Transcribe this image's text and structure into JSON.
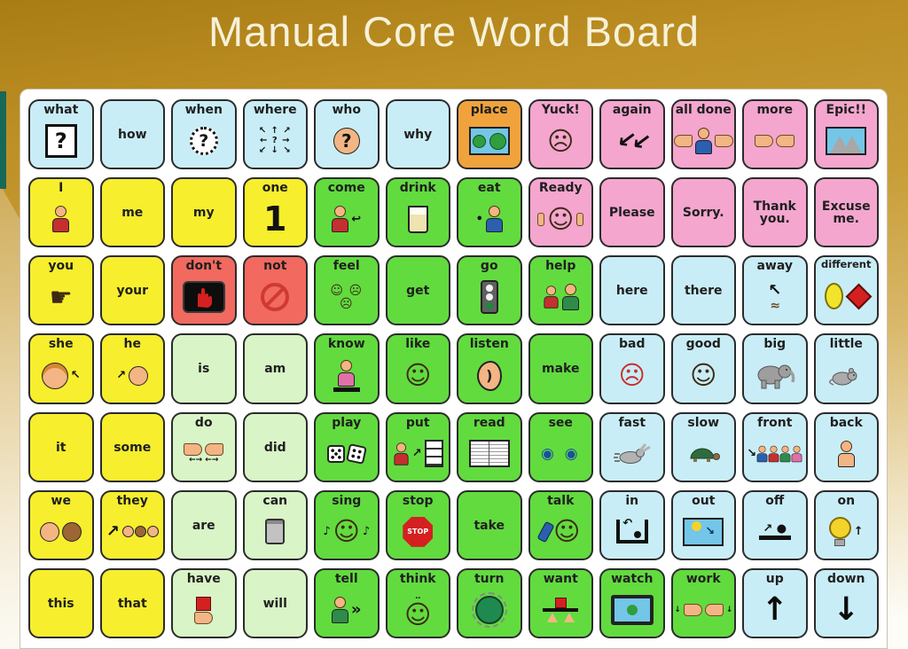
{
  "title": "Manual Core Word Board",
  "colors": {
    "slide_background_gold": "#c0912a",
    "title_text": "#f6f1da",
    "teal_accent": "#18685a",
    "board_background": "#ffffff",
    "cell_border": "#2b2b2b",
    "word_text": "#1f1f1f",
    "categories": {
      "blue": "#c9edf6",
      "yellow": "#f7ee2e",
      "pink": "#f4a6ce",
      "green": "#62db3f",
      "pale": "#d9f4c7",
      "red": "#f2695f",
      "orange": "#f0a33c"
    }
  },
  "board": {
    "rows": 7,
    "cols": 12,
    "cells": [
      {
        "word": "what",
        "color": "blue",
        "icon": "question-box-icon"
      },
      {
        "word": "how",
        "color": "blue"
      },
      {
        "word": "when",
        "color": "blue",
        "icon": "clock-question-icon"
      },
      {
        "word": "where",
        "color": "blue",
        "icon": "direction-arrows-icon"
      },
      {
        "word": "who",
        "color": "blue",
        "icon": "face-question-icon"
      },
      {
        "word": "why",
        "color": "blue"
      },
      {
        "word": "place",
        "color": "orange",
        "icon": "park-scene-icon"
      },
      {
        "word": "Yuck!",
        "color": "pink",
        "icon": "disgusted-face-icon"
      },
      {
        "word": "again",
        "color": "pink",
        "icon": "repeat-arrows-icon"
      },
      {
        "word": "all done",
        "color": "pink",
        "icon": "all-done-hands-icon"
      },
      {
        "word": "more",
        "color": "pink",
        "icon": "more-hands-icon"
      },
      {
        "word": "Epic!!",
        "color": "pink",
        "icon": "mountains-icon"
      },
      {
        "word": "I",
        "color": "yellow",
        "icon": "point-to-self-icon"
      },
      {
        "word": "me",
        "color": "yellow"
      },
      {
        "word": "my",
        "color": "yellow"
      },
      {
        "word": "one",
        "color": "yellow",
        "icon": "numeral-one-icon"
      },
      {
        "word": "come",
        "color": "green",
        "icon": "beckoning-person-icon"
      },
      {
        "word": "drink",
        "color": "green",
        "icon": "drink-glass-icon"
      },
      {
        "word": "eat",
        "color": "green",
        "icon": "eating-person-icon"
      },
      {
        "word": "Ready",
        "color": "pink",
        "icon": "thumbs-up-person-icon"
      },
      {
        "word": "Please",
        "color": "pink"
      },
      {
        "word": "Sorry.",
        "color": "pink"
      },
      {
        "word": "Thank you.",
        "color": "pink"
      },
      {
        "word": "Excuse me.",
        "color": "pink"
      },
      {
        "word": "you",
        "color": "yellow",
        "icon": "pointing-at-you-icon"
      },
      {
        "word": "your",
        "color": "yellow"
      },
      {
        "word": "don't",
        "color": "red",
        "icon": "stop-hand-icon"
      },
      {
        "word": "not",
        "color": "red",
        "icon": "no-symbol-icon"
      },
      {
        "word": "feel",
        "color": "green",
        "icon": "feelings-faces-icon"
      },
      {
        "word": "get",
        "color": "green"
      },
      {
        "word": "go",
        "color": "green",
        "icon": "traffic-light-icon"
      },
      {
        "word": "help",
        "color": "green",
        "icon": "helping-people-icon"
      },
      {
        "word": "here",
        "color": "blue"
      },
      {
        "word": "there",
        "color": "blue"
      },
      {
        "word": "away",
        "color": "blue",
        "icon": "fly-away-icon"
      },
      {
        "word": "different",
        "color": "blue",
        "icon": "different-shapes-icon"
      },
      {
        "word": "she",
        "color": "yellow",
        "icon": "female-face-arrow-icon"
      },
      {
        "word": "he",
        "color": "yellow",
        "icon": "male-face-arrow-icon"
      },
      {
        "word": "is",
        "color": "pale"
      },
      {
        "word": "am",
        "color": "pale"
      },
      {
        "word": "know",
        "color": "green",
        "icon": "raised-hand-person-icon"
      },
      {
        "word": "like",
        "color": "green",
        "icon": "smiling-face-icon"
      },
      {
        "word": "listen",
        "color": "green",
        "icon": "listening-ear-icon"
      },
      {
        "word": "make",
        "color": "green"
      },
      {
        "word": "bad",
        "color": "blue",
        "icon": "angry-face-icon"
      },
      {
        "word": "good",
        "color": "blue",
        "icon": "happy-face-icon"
      },
      {
        "word": "big",
        "color": "blue",
        "icon": "elephant-icon"
      },
      {
        "word": "little",
        "color": "blue",
        "icon": "mouse-icon"
      },
      {
        "word": "it",
        "color": "yellow"
      },
      {
        "word": "some",
        "color": "yellow"
      },
      {
        "word": "do",
        "color": "pale",
        "icon": "doing-hands-icon"
      },
      {
        "word": "did",
        "color": "pale"
      },
      {
        "word": "play",
        "color": "green",
        "icon": "dice-icon"
      },
      {
        "word": "put",
        "color": "green",
        "icon": "put-on-shelf-icon"
      },
      {
        "word": "read",
        "color": "green",
        "icon": "open-book-icon"
      },
      {
        "word": "see",
        "color": "green",
        "icon": "seeing-eyes-icon"
      },
      {
        "word": "fast",
        "color": "blue",
        "icon": "rabbit-icon"
      },
      {
        "word": "slow",
        "color": "blue",
        "icon": "turtle-icon"
      },
      {
        "word": "front",
        "color": "blue",
        "icon": "people-in-line-icon"
      },
      {
        "word": "back",
        "color": "blue",
        "icon": "person-back-icon"
      },
      {
        "word": "we",
        "color": "yellow",
        "icon": "two-faces-icon"
      },
      {
        "word": "they",
        "color": "yellow",
        "icon": "group-arrow-icon"
      },
      {
        "word": "are",
        "color": "pale"
      },
      {
        "word": "can",
        "color": "pale",
        "icon": "tin-can-icon"
      },
      {
        "word": "sing",
        "color": "green",
        "icon": "singing-face-icon"
      },
      {
        "word": "stop",
        "color": "green",
        "icon": "stop-sign-icon"
      },
      {
        "word": "take",
        "color": "green"
      },
      {
        "word": "talk",
        "color": "green",
        "icon": "talking-phone-icon"
      },
      {
        "word": "in",
        "color": "blue",
        "icon": "into-container-icon"
      },
      {
        "word": "out",
        "color": "blue",
        "icon": "out-window-icon"
      },
      {
        "word": "off",
        "color": "blue",
        "icon": "switch-off-icon"
      },
      {
        "word": "on",
        "color": "blue",
        "icon": "light-bulb-icon"
      },
      {
        "word": "this",
        "color": "yellow"
      },
      {
        "word": "that",
        "color": "yellow"
      },
      {
        "word": "have",
        "color": "pale",
        "icon": "hand-with-block-icon"
      },
      {
        "word": "will",
        "color": "pale"
      },
      {
        "word": "tell",
        "color": "green",
        "icon": "telling-person-icon"
      },
      {
        "word": "think",
        "color": "green",
        "icon": "thinking-face-icon"
      },
      {
        "word": "turn",
        "color": "green",
        "icon": "turn-knob-icon"
      },
      {
        "word": "want",
        "color": "green",
        "icon": "wanting-hands-icon"
      },
      {
        "word": "watch",
        "color": "green",
        "icon": "television-icon"
      },
      {
        "word": "work",
        "color": "green",
        "icon": "working-hands-icon"
      },
      {
        "word": "up",
        "color": "blue",
        "icon": "up-arrow-icon"
      },
      {
        "word": "down",
        "color": "blue",
        "icon": "down-arrow-icon"
      }
    ]
  }
}
